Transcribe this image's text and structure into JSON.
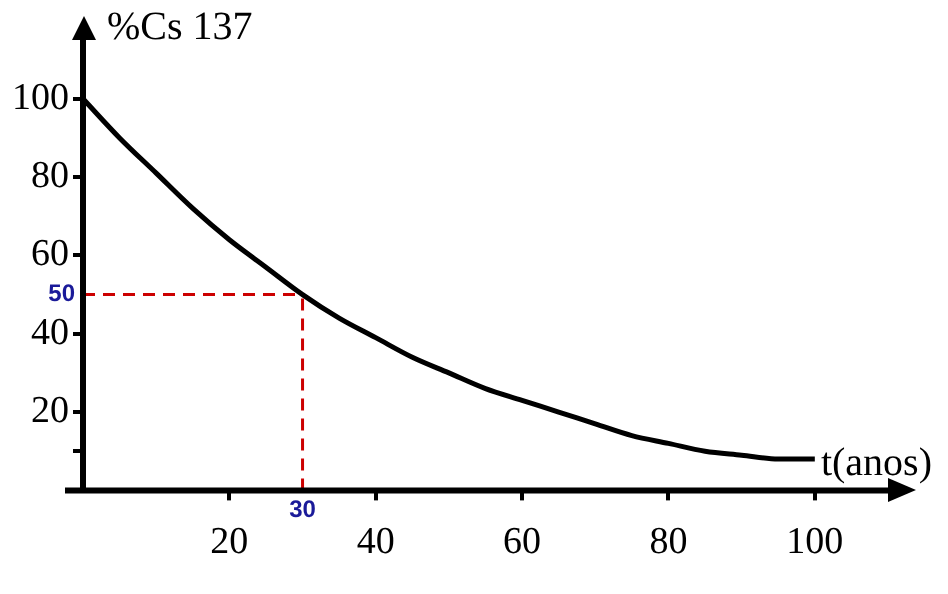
{
  "chart_data": {
    "type": "line",
    "xlabel": "t(anos)",
    "ylabel": "%Cs 137",
    "x": [
      0,
      5,
      10,
      15,
      20,
      25,
      30,
      35,
      40,
      45,
      50,
      55,
      60,
      65,
      70,
      75,
      80,
      85,
      90,
      95,
      100
    ],
    "series": [
      {
        "color": "#000000",
        "values": [
          100,
          90,
          81,
          72,
          64,
          57,
          50,
          44,
          39,
          34,
          30,
          26,
          23,
          20,
          17,
          14,
          12,
          10,
          9,
          8,
          8
        ]
      }
    ],
    "xlim": [
      0,
      110
    ],
    "ylim": [
      0,
      115
    ],
    "xticks": [
      20,
      40,
      60,
      80,
      100
    ],
    "yticks": [
      {
        "value": 10,
        "label": null
      },
      20,
      40,
      60,
      80,
      100
    ],
    "ref_lines": [
      {
        "axis": "y",
        "value": 50,
        "label": "50",
        "color": "#cc0000",
        "line_style": "dashed"
      },
      {
        "axis": "x",
        "value": 30,
        "label": "30",
        "color": "#cc0000",
        "line_style": "dashed"
      }
    ],
    "grid": false,
    "legend": false,
    "marker": "none",
    "line_style": "solid"
  }
}
